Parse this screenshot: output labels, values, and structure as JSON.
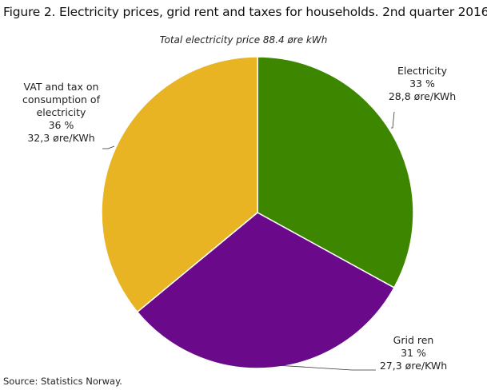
{
  "chart_data": {
    "type": "pie",
    "title": "Figure 2. Electricity prices, grid rent and taxes for households. 2nd quarter 2016",
    "subtitle": "Total electricity price 88.4 øre kWh",
    "categories": [
      "Electricity",
      "Grid ren",
      "VAT and tax on consumption of electricity"
    ],
    "values": [
      33,
      31,
      36
    ],
    "value_labels": [
      "33 %",
      "31 %",
      "36 %"
    ],
    "price_labels": [
      "28,8 øre/KWh",
      "27,3 øre/KWh",
      "32,3 øre/KWh"
    ],
    "colors": [
      "#3d8700",
      "#6a0a8a",
      "#e8b423"
    ],
    "source": "Source: Statistics Norway."
  }
}
